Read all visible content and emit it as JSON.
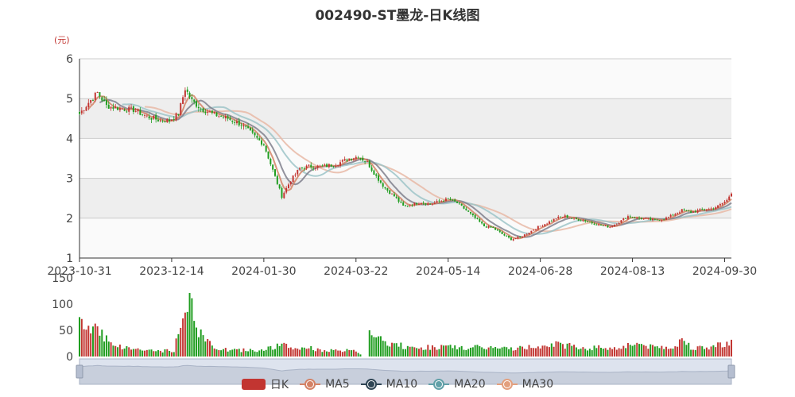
{
  "chart_data": {
    "type": "candlestick",
    "title": "002490-ST墨龙-日K线图",
    "unit_label": "(元)",
    "ylim": [
      1,
      6
    ],
    "yticks": [
      1,
      2,
      3,
      4,
      5,
      6
    ],
    "x_tick_labels": [
      "2023-10-31",
      "2023-12-14",
      "2024-01-30",
      "2024-03-22",
      "2024-05-14",
      "2024-06-28",
      "2024-08-13",
      "2024-09-30"
    ],
    "close_anchors": [
      [
        0,
        4.62
      ],
      [
        4,
        4.9
      ],
      [
        8,
        5.15
      ],
      [
        12,
        4.82
      ],
      [
        18,
        4.75
      ],
      [
        24,
        4.72
      ],
      [
        30,
        4.55
      ],
      [
        36,
        4.45
      ],
      [
        40,
        4.45
      ],
      [
        44,
        4.62
      ],
      [
        47,
        5.25
      ],
      [
        50,
        4.95
      ],
      [
        54,
        4.75
      ],
      [
        60,
        4.6
      ],
      [
        66,
        4.5
      ],
      [
        72,
        4.35
      ],
      [
        78,
        4.05
      ],
      [
        82,
        3.85
      ],
      [
        86,
        3.2
      ],
      [
        90,
        2.55
      ],
      [
        94,
        2.95
      ],
      [
        98,
        3.25
      ],
      [
        102,
        3.3
      ],
      [
        108,
        3.3
      ],
      [
        114,
        3.35
      ],
      [
        120,
        3.5
      ],
      [
        124,
        3.55
      ],
      [
        128,
        3.4
      ],
      [
        132,
        3.05
      ],
      [
        136,
        2.75
      ],
      [
        140,
        2.55
      ],
      [
        144,
        2.3
      ],
      [
        148,
        2.35
      ],
      [
        152,
        2.4
      ],
      [
        156,
        2.35
      ],
      [
        160,
        2.42
      ],
      [
        164,
        2.48
      ],
      [
        168,
        2.38
      ],
      [
        172,
        2.2
      ],
      [
        176,
        2.0
      ],
      [
        180,
        1.8
      ],
      [
        184,
        1.75
      ],
      [
        188,
        1.6
      ],
      [
        192,
        1.47
      ],
      [
        196,
        1.52
      ],
      [
        200,
        1.65
      ],
      [
        204,
        1.78
      ],
      [
        208,
        1.88
      ],
      [
        212,
        2.0
      ],
      [
        216,
        2.05
      ],
      [
        220,
        1.98
      ],
      [
        224,
        1.95
      ],
      [
        228,
        1.88
      ],
      [
        232,
        1.82
      ],
      [
        236,
        1.78
      ],
      [
        240,
        1.9
      ],
      [
        244,
        2.05
      ],
      [
        248,
        2.0
      ],
      [
        252,
        1.98
      ],
      [
        256,
        1.95
      ],
      [
        260,
        1.98
      ],
      [
        264,
        2.08
      ],
      [
        268,
        2.2
      ],
      [
        272,
        2.15
      ],
      [
        276,
        2.2
      ],
      [
        280,
        2.22
      ],
      [
        284,
        2.3
      ],
      [
        288,
        2.45
      ],
      [
        290,
        2.65
      ]
    ],
    "volume_anchors": [
      [
        0,
        60
      ],
      [
        4,
        55
      ],
      [
        8,
        58
      ],
      [
        12,
        35
      ],
      [
        18,
        18
      ],
      [
        24,
        15
      ],
      [
        30,
        12
      ],
      [
        36,
        10
      ],
      [
        42,
        12
      ],
      [
        46,
        70
      ],
      [
        48,
        120
      ],
      [
        50,
        90
      ],
      [
        54,
        40
      ],
      [
        60,
        18
      ],
      [
        66,
        12
      ],
      [
        72,
        12
      ],
      [
        78,
        12
      ],
      [
        84,
        15
      ],
      [
        90,
        22
      ],
      [
        96,
        14
      ],
      [
        100,
        18
      ],
      [
        108,
        12
      ],
      [
        116,
        10
      ],
      [
        120,
        12
      ],
      [
        124,
        8
      ],
      [
        126,
        0
      ],
      [
        128,
        0
      ],
      [
        129,
        60
      ],
      [
        132,
        35
      ],
      [
        136,
        25
      ],
      [
        142,
        22
      ],
      [
        148,
        15
      ],
      [
        156,
        18
      ],
      [
        164,
        18
      ],
      [
        172,
        16
      ],
      [
        180,
        18
      ],
      [
        188,
        15
      ],
      [
        196,
        16
      ],
      [
        204,
        20
      ],
      [
        208,
        25
      ],
      [
        214,
        22
      ],
      [
        220,
        20
      ],
      [
        226,
        15
      ],
      [
        232,
        18
      ],
      [
        238,
        15
      ],
      [
        244,
        22
      ],
      [
        248,
        25
      ],
      [
        254,
        18
      ],
      [
        260,
        18
      ],
      [
        266,
        20
      ],
      [
        268,
        35
      ],
      [
        272,
        18
      ],
      [
        278,
        15
      ],
      [
        284,
        22
      ],
      [
        288,
        26
      ],
      [
        290,
        28
      ]
    ],
    "vol_ylim": [
      0,
      150
    ],
    "vol_yticks": [
      0,
      50,
      100,
      150
    ],
    "series": [
      {
        "name": "日K",
        "color": "#c23531"
      },
      {
        "name": "MA5",
        "color": "#d48265"
      },
      {
        "name": "MA10",
        "color": "#2f4554"
      },
      {
        "name": "MA20",
        "color": "#61a0a8"
      },
      {
        "name": "MA30",
        "color": "#e3a07e"
      }
    ],
    "colors": {
      "up": "#c23531",
      "down": "#1f9d1f",
      "ma5": "#d48265",
      "ma10": "#7f7f8c",
      "ma20": "#9ec4c8",
      "ma30": "#e8b9a6"
    },
    "grid": true,
    "legend_position": "bottom"
  }
}
